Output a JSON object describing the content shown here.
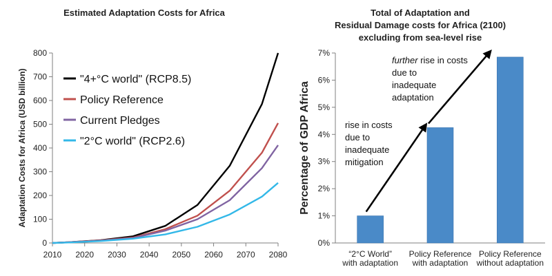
{
  "colors": {
    "rcp85": "#000000",
    "policy": "#c0504d",
    "pledges": "#8064a2",
    "rcp26": "#33b8e8",
    "bar": "#4a8ac8",
    "arrow": "#000000"
  },
  "chart_data": [
    {
      "type": "line",
      "title": "Estimated Adaptation Costs for Africa",
      "xlabel": "",
      "ylabel": "Adaptation Costs for Africa (USD billion)",
      "xlim": [
        2010,
        2080
      ],
      "ylim": [
        0,
        800
      ],
      "x_ticks": [
        "2010",
        "2020",
        "2030",
        "2040",
        "2050",
        "2060",
        "2070",
        "2080"
      ],
      "y_ticks": [
        "0",
        "100",
        "200",
        "300",
        "400",
        "500",
        "600",
        "700",
        "800"
      ],
      "legend_position": "top-left",
      "x": [
        2010,
        2015,
        2025,
        2035,
        2045,
        2055,
        2065,
        2075,
        2080
      ],
      "series": [
        {
          "name": "\"4+°C world\" (RCP8.5)",
          "color": "#000000",
          "values": [
            0,
            3,
            12,
            28,
            72,
            160,
            325,
            585,
            800
          ]
        },
        {
          "name": "Policy Reference",
          "color": "#c0504d",
          "values": [
            0,
            3,
            11,
            23,
            58,
            115,
            220,
            380,
            505
          ]
        },
        {
          "name": "Current Pledges",
          "color": "#8064a2",
          "values": [
            0,
            3,
            10,
            21,
            52,
            100,
            180,
            315,
            412
          ]
        },
        {
          "name": "\"2°C world\" (RCP2.6)",
          "color": "#33b8e8",
          "values": [
            0,
            2,
            8,
            18,
            36,
            68,
            120,
            195,
            253
          ]
        }
      ]
    },
    {
      "type": "bar",
      "title_lines": [
        "Total of Adaptation and",
        "Residual Damage costs for Africa (2100)",
        "excluding from sea-level rise"
      ],
      "ylabel": "Percentage of GDP Africa",
      "ylim": [
        0,
        7
      ],
      "y_ticks": [
        "0%",
        "1%",
        "2%",
        "3%",
        "4%",
        "5%",
        "6%",
        "7%"
      ],
      "categories": [
        [
          "“2°C World”",
          "with adaptation"
        ],
        [
          "Policy Reference",
          "with adaptation"
        ],
        [
          "Policy Reference",
          "without adaptation"
        ]
      ],
      "values": [
        1.0,
        4.25,
        6.85
      ],
      "annotations": [
        {
          "lines": [
            "rise in costs",
            "due to",
            "inadequate",
            "mitigation"
          ]
        },
        {
          "emph": "further",
          "first_rest": " rise in costs",
          "lines": [
            "due to",
            "inadequate",
            "adaptation"
          ]
        }
      ]
    }
  ]
}
